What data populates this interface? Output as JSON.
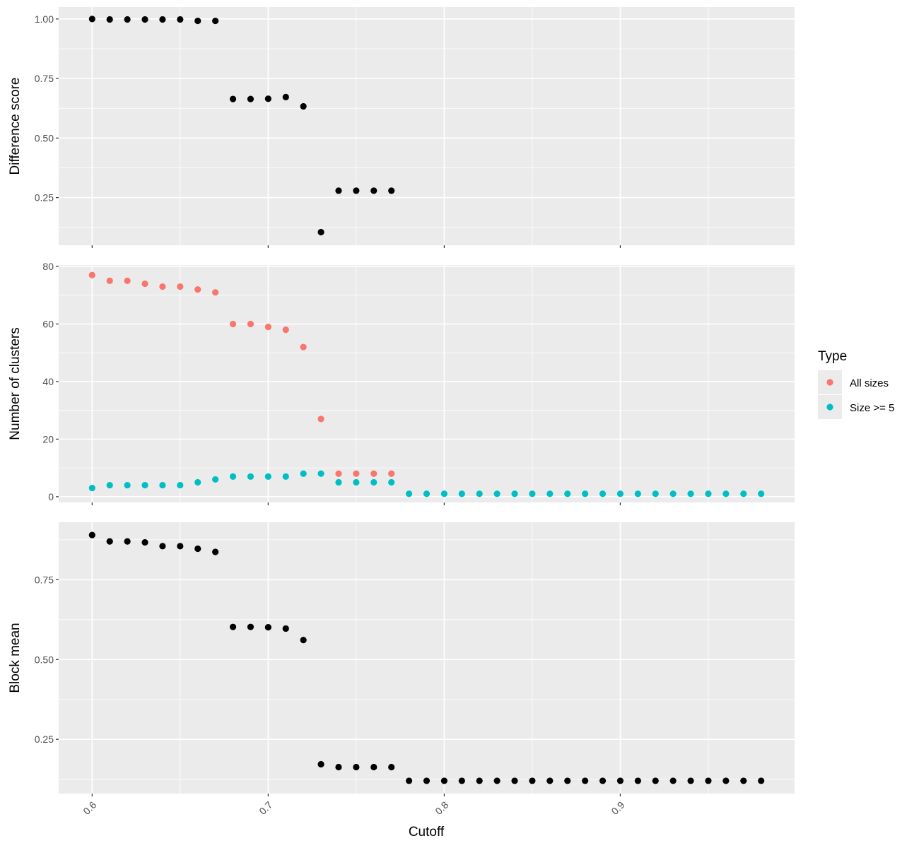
{
  "chart_data": [
    {
      "panel": "top",
      "type": "scatter",
      "ylabel": "Difference score",
      "ylim": [
        0.05,
        1.05
      ],
      "yticks": [
        0.25,
        0.5,
        0.75,
        1.0
      ],
      "ytick_labels": [
        "0.25",
        "0.50",
        "0.75",
        "1.00"
      ],
      "series": [
        {
          "color": "#000000",
          "x": [
            0.6,
            0.61,
            0.62,
            0.63,
            0.64,
            0.65,
            0.66,
            0.67,
            0.68,
            0.69,
            0.7,
            0.71,
            0.72,
            0.73,
            0.74,
            0.75,
            0.76,
            0.77
          ],
          "y": [
            1.0,
            0.998,
            0.998,
            0.998,
            0.998,
            0.998,
            0.992,
            0.992,
            0.664,
            0.664,
            0.665,
            0.672,
            0.633,
            0.105,
            0.279,
            0.279,
            0.279,
            0.279
          ]
        }
      ]
    },
    {
      "panel": "middle",
      "type": "scatter",
      "ylabel": "Number of clusters",
      "ylim": [
        -2,
        80.5
      ],
      "yticks": [
        0,
        20,
        40,
        60,
        80
      ],
      "ytick_labels": [
        "0",
        "20",
        "40",
        "60",
        "80"
      ],
      "series": [
        {
          "name": "All sizes",
          "color": "#F8766D",
          "x": [
            0.6,
            0.61,
            0.62,
            0.63,
            0.64,
            0.65,
            0.66,
            0.67,
            0.68,
            0.69,
            0.7,
            0.71,
            0.72,
            0.73,
            0.74,
            0.75,
            0.76,
            0.77
          ],
          "y": [
            77,
            75,
            75,
            74,
            73,
            73,
            72,
            71,
            60,
            60,
            59,
            58,
            52,
            27,
            8,
            8,
            8,
            8
          ]
        },
        {
          "name": "Size >= 5",
          "color": "#00BFC4",
          "x": [
            0.6,
            0.61,
            0.62,
            0.63,
            0.64,
            0.65,
            0.66,
            0.67,
            0.68,
            0.69,
            0.7,
            0.71,
            0.72,
            0.73,
            0.74,
            0.75,
            0.76,
            0.77,
            0.78,
            0.79,
            0.8,
            0.81,
            0.82,
            0.83,
            0.84,
            0.85,
            0.86,
            0.87,
            0.88,
            0.89,
            0.9,
            0.91,
            0.92,
            0.93,
            0.94,
            0.95,
            0.96,
            0.97,
            0.98
          ],
          "y": [
            3,
            4,
            4,
            4,
            4,
            4,
            5,
            6,
            7,
            7,
            7,
            7,
            8,
            8,
            5,
            5,
            5,
            5,
            1,
            1,
            1,
            1,
            1,
            1,
            1,
            1,
            1,
            1,
            1,
            1,
            1,
            1,
            1,
            1,
            1,
            1,
            1,
            1,
            1
          ]
        }
      ]
    },
    {
      "panel": "bottom",
      "type": "scatter",
      "ylabel": "Block mean",
      "ylim": [
        0.08,
        0.93
      ],
      "yticks": [
        0.25,
        0.5,
        0.75
      ],
      "ytick_labels": [
        "0.25",
        "0.50",
        "0.75"
      ],
      "series": [
        {
          "color": "#000000",
          "x": [
            0.6,
            0.61,
            0.62,
            0.63,
            0.64,
            0.65,
            0.66,
            0.67,
            0.68,
            0.69,
            0.7,
            0.71,
            0.72,
            0.73,
            0.74,
            0.75,
            0.76,
            0.77,
            0.78,
            0.79,
            0.8,
            0.81,
            0.82,
            0.83,
            0.84,
            0.85,
            0.86,
            0.87,
            0.88,
            0.89,
            0.9,
            0.91,
            0.92,
            0.93,
            0.94,
            0.95,
            0.96,
            0.97,
            0.98
          ],
          "y": [
            0.89,
            0.87,
            0.87,
            0.867,
            0.855,
            0.855,
            0.847,
            0.837,
            0.602,
            0.602,
            0.601,
            0.597,
            0.561,
            0.172,
            0.163,
            0.163,
            0.163,
            0.163,
            0.12,
            0.12,
            0.12,
            0.12,
            0.12,
            0.12,
            0.12,
            0.12,
            0.12,
            0.12,
            0.12,
            0.12,
            0.12,
            0.12,
            0.12,
            0.12,
            0.12,
            0.12,
            0.12,
            0.12,
            0.12
          ]
        }
      ]
    }
  ],
  "x_axis": {
    "label": "Cutoff",
    "xlim": [
      0.581,
      0.999
    ],
    "ticks": [
      0.6,
      0.7,
      0.8,
      0.9
    ],
    "tick_labels": [
      "0.6",
      "0.7",
      "0.8",
      "0.9"
    ]
  },
  "legend": {
    "title": "Type",
    "placement": "right",
    "entries": [
      {
        "label": "All sizes",
        "color": "#F8766D"
      },
      {
        "label": "Size >= 5",
        "color": "#00BFC4"
      }
    ]
  }
}
